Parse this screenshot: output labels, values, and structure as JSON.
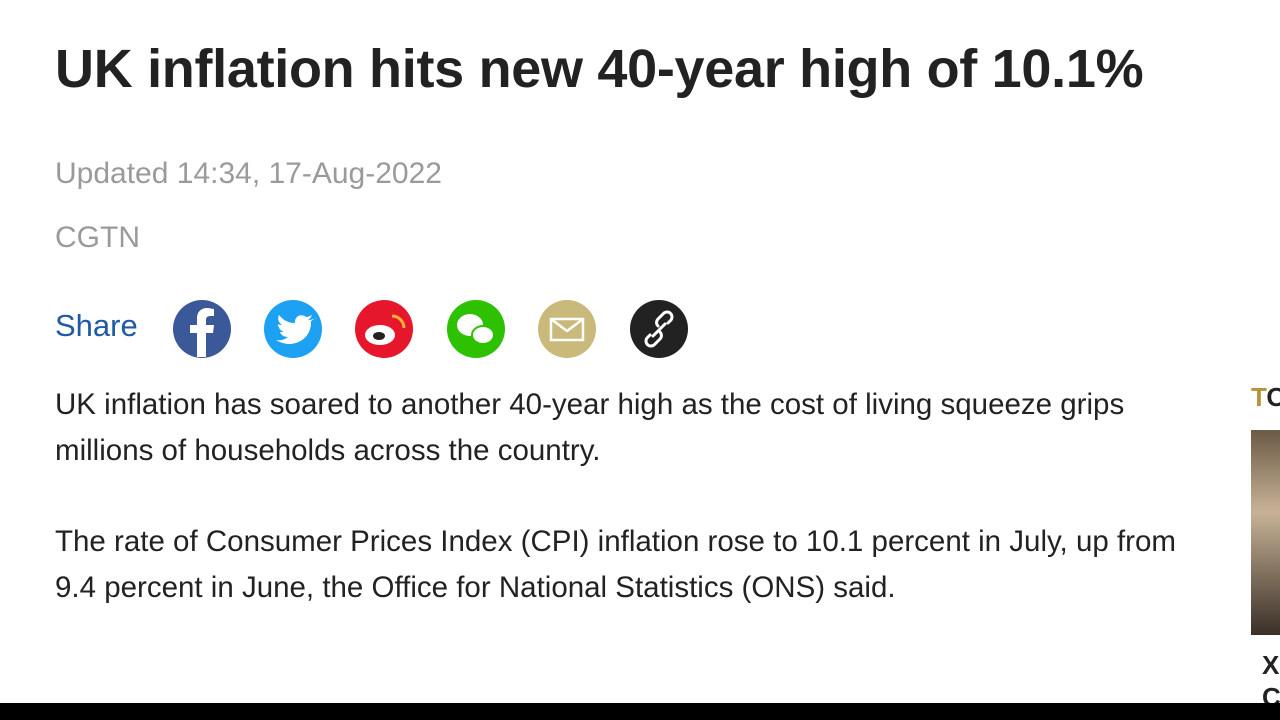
{
  "article": {
    "title": "UK inflation hits new 40-year high of 10.1%",
    "updated": "Updated 14:34, 17-Aug-2022",
    "source": "CGTN",
    "share_label": "Share",
    "paragraphs": [
      "UK inflation has soared to another 40-year high as the cost of living squeeze grips millions of households across the country.",
      "The rate of Consumer Prices Index (CPI) inflation rose to 10.1 percent in July, up from 9.4 percent in June, the Office for National Statistics (ONS) said."
    ]
  },
  "sidebar": {
    "heading": "TO",
    "lines": [
      "X",
      "C"
    ]
  }
}
